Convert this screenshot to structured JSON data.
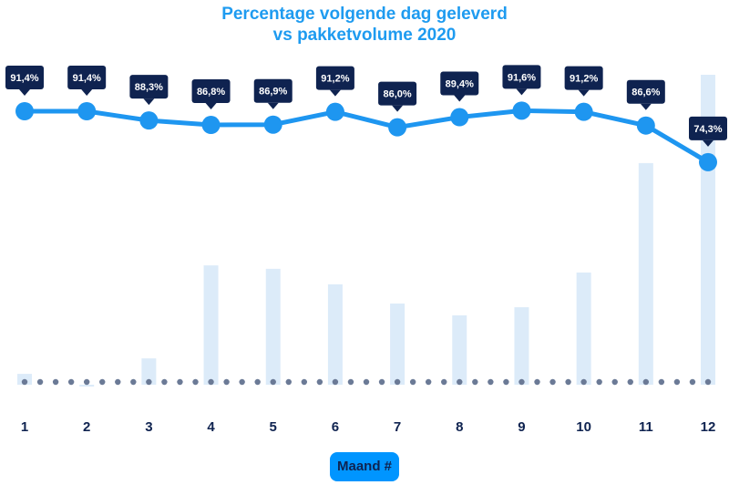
{
  "chart_data": {
    "type": "line",
    "title": "Percentage volgende dag geleverd",
    "subtitle": "vs pakketvolume 2020",
    "xlabel": "Maand #",
    "categories": [
      "1",
      "2",
      "3",
      "4",
      "5",
      "6",
      "7",
      "8",
      "9",
      "10",
      "11",
      "12"
    ],
    "series": [
      {
        "type": "line",
        "values": [
          91.4,
          91.4,
          88.3,
          86.8,
          86.9,
          91.2,
          86.0,
          89.4,
          91.6,
          91.2,
          86.6,
          74.3
        ],
        "labels": [
          "91,4%",
          "91,4%",
          "88,3%",
          "86,8%",
          "86,9%",
          "91,2%",
          "86,0%",
          "89,4%",
          "91,6%",
          "91,2%",
          "86,6%",
          "74,3%"
        ],
        "color": "#1e96f0"
      },
      {
        "type": "bar",
        "values": [
          3.5,
          -0.6,
          8.5,
          38.5,
          37.4,
          32.4,
          26.2,
          22.4,
          25.0,
          36.2,
          71.5,
          100
        ],
        "color": "#dcebf9"
      }
    ],
    "grid": false,
    "colors": {
      "label_bg": "#0f2350",
      "baseline_dots": "#6b7a96",
      "tick_text": "#0f2350"
    }
  }
}
